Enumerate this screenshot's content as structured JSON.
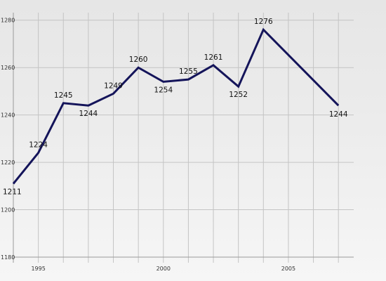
{
  "chart_data": {
    "type": "line",
    "title": "",
    "xlabel": "",
    "ylabel": "",
    "x": [
      1994,
      1995,
      1996,
      1997,
      1998,
      1999,
      2000,
      2001,
      2002,
      2003,
      2004,
      2007
    ],
    "series": [
      {
        "name": "",
        "values": [
          1211,
          1224,
          1245,
          1244,
          1249,
          1260,
          1254,
          1255,
          1261,
          1252,
          1276,
          1244
        ],
        "color": "#14145a"
      }
    ],
    "xlim": [
      1994,
      2007.5
    ],
    "ylim": [
      1180,
      1282
    ],
    "x_ticks": [
      "1995",
      "2000",
      "2005"
    ],
    "y_ticks": [
      "1180",
      "1200",
      "1220",
      "1240",
      "1260",
      "1280"
    ],
    "grid": true,
    "legend": "none"
  }
}
